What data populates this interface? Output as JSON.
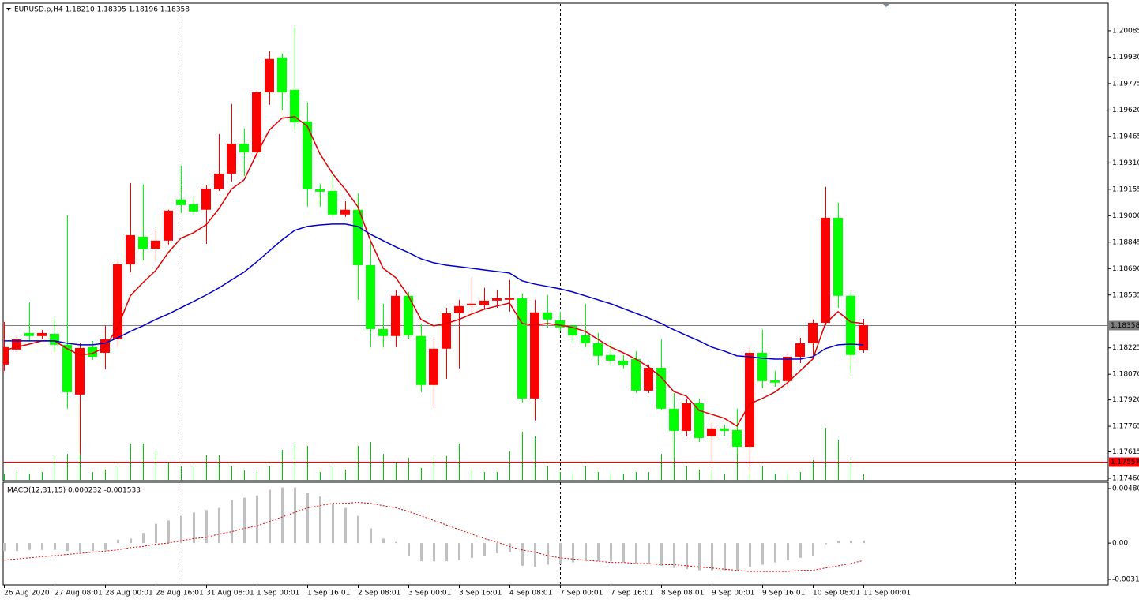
{
  "chart_data": [
    {
      "type": "candlestick",
      "title": "EURUSD.p,H4  1.18210 1.18395 1.18196 1.18358",
      "categories": [
        "26 Aug 2020",
        null,
        null,
        null,
        "27 Aug 08:01",
        null,
        null,
        null,
        "28 Aug 00:01",
        null,
        null,
        null,
        "28 Aug 16:01",
        null,
        null,
        null,
        "31 Aug 08:01",
        null,
        null,
        null,
        "1 Sep 00:01",
        null,
        null,
        null,
        "1 Sep 16:01",
        null,
        null,
        null,
        "2 Sep 08:01",
        null,
        null,
        null,
        "3 Sep 00:01",
        null,
        null,
        null,
        "3 Sep 16:01",
        null,
        null,
        null,
        "4 Sep 08:01",
        null,
        null,
        null,
        "7 Sep 00:01",
        null,
        null,
        null,
        "7 Sep 16:01",
        null,
        null,
        null,
        "8 Sep 08:01",
        null,
        null,
        null,
        "9 Sep 00:01",
        null,
        null,
        null,
        "9 Sep 16:01",
        null,
        null,
        null,
        "10 Sep 08:01",
        null,
        null,
        null,
        "11 Sep 00:01"
      ],
      "open": [
        1.18127,
        1.18215,
        1.18312,
        1.18294,
        1.18307,
        1.18243,
        1.17951,
        1.18229,
        1.18196,
        1.18275,
        1.18715,
        1.18877,
        1.18807,
        1.18854,
        1.19095,
        1.19067,
        1.19035,
        1.19155,
        1.19247,
        1.19423,
        1.19372,
        1.19724,
        1.19928,
        1.19738,
        1.19553,
        1.19155,
        1.19145,
        1.19007,
        1.19035,
        1.1871,
        1.18335,
        1.18294,
        1.1853,
        1.18294,
        1.18007,
        1.1822,
        1.18428,
        1.18475,
        1.18475,
        1.18502,
        1.18507,
        1.18516,
        1.17928,
        1.18433,
        1.18386,
        1.18354,
        1.18298,
        1.18252,
        1.18183,
        1.1815,
        1.18159,
        1.17974,
        1.18108,
        1.17868,
        1.17738,
        1.179,
        1.17706,
        1.17752,
        1.17743,
        1.17645,
        1.18196,
        1.18035,
        1.1803,
        1.18173,
        1.18252,
        1.18372,
        1.18988,
        1.1853,
        1.1821
      ],
      "high": [
        1.18377,
        1.18298,
        1.18493,
        1.18331,
        1.18395,
        1.19002,
        1.18252,
        1.18266,
        1.18354,
        1.18738,
        1.19192,
        1.19183,
        1.18923,
        1.19035,
        1.19294,
        1.19108,
        1.19178,
        1.19479,
        1.19655,
        1.19511,
        1.19733,
        1.19965,
        1.19951,
        1.20109,
        1.19664,
        1.19187,
        1.19247,
        1.19085,
        1.19131,
        1.18845,
        1.18483,
        1.18562,
        1.18553,
        1.18368,
        1.18275,
        1.1846,
        1.18507,
        1.18637,
        1.18577,
        1.18562,
        1.18623,
        1.18544,
        1.18507,
        1.18535,
        1.18437,
        1.18368,
        1.18484,
        1.18312,
        1.18252,
        1.18183,
        1.18206,
        1.18127,
        1.18275,
        1.1796,
        1.17928,
        1.17928,
        1.17789,
        1.17775,
        1.17868,
        1.18229,
        1.18331,
        1.1809,
        1.18192,
        1.18284,
        1.18391,
        1.19169,
        1.19076,
        1.18553,
        1.18395
      ],
      "low": [
        1.1809,
        1.18196,
        1.18266,
        1.18275,
        1.18201,
        1.17868,
        1.17604,
        1.18155,
        1.18099,
        1.18229,
        1.18669,
        1.18738,
        1.18729,
        1.18831,
        1.19016,
        1.19007,
        1.18835,
        1.19145,
        1.19201,
        1.19233,
        1.1934,
        1.1965,
        1.19618,
        1.19502,
        1.19053,
        1.19053,
        1.18993,
        1.18993,
        1.18507,
        1.18229,
        1.18229,
        1.18229,
        1.18275,
        1.17965,
        1.17882,
        1.18044,
        1.18104,
        1.18437,
        1.18451,
        1.1846,
        1.18437,
        1.17905,
        1.17799,
        1.1834,
        1.18321,
        1.18257,
        1.18229,
        1.18122,
        1.18122,
        1.18104,
        1.1796,
        1.1796,
        1.17858,
        1.17581,
        1.17706,
        1.17673,
        1.17558,
        1.1771,
        1.17604,
        1.17498,
        1.17988,
        1.17997,
        1.17997,
        1.18136,
        1.18159,
        1.18358,
        1.1846,
        1.18076,
        1.18196
      ],
      "close": [
        1.18229,
        1.18275,
        1.18294,
        1.18312,
        1.18243,
        1.17965,
        1.18224,
        1.18173,
        1.18275,
        1.18715,
        1.18886,
        1.18803,
        1.18854,
        1.1903,
        1.19062,
        1.19025,
        1.19159,
        1.19247,
        1.19423,
        1.19372,
        1.19724,
        1.19919,
        1.19724,
        1.19548,
        1.19155,
        1.19141,
        1.19007,
        1.19035,
        1.1871,
        1.18335,
        1.18294,
        1.1853,
        1.18298,
        1.18007,
        1.1822,
        1.18428,
        1.1847,
        1.18484,
        1.18502,
        1.18516,
        1.18516,
        1.17928,
        1.18433,
        1.18391,
        1.18345,
        1.18298,
        1.18252,
        1.18178,
        1.1815,
        1.18122,
        1.17974,
        1.18108,
        1.17868,
        1.17738,
        1.179,
        1.17696,
        1.17752,
        1.17738,
        1.17645,
        1.18196,
        1.1803,
        1.18021,
        1.18173,
        1.18252,
        1.18372,
        1.18988,
        1.1853,
        1.18183,
        1.18358
      ],
      "up_color": "#ff0000",
      "down_color": "#00ff00",
      "lines": [
        {
          "color": "#dd0000",
          "values": [
            1.1821,
            1.18229,
            1.18247,
            1.18266,
            1.18266,
            1.1822,
            1.18183,
            1.18192,
            1.18229,
            1.18345,
            1.1853,
            1.18608,
            1.18678,
            1.18784,
            1.18868,
            1.189,
            1.18947,
            1.1904,
            1.19155,
            1.1921,
            1.19363,
            1.19502,
            1.19572,
            1.19581,
            1.19525,
            1.19363,
            1.19247,
            1.19155,
            1.19053,
            1.18854,
            1.18692,
            1.18637,
            1.1853,
            1.18391,
            1.18354,
            1.18368,
            1.18391,
            1.18423,
            1.18451,
            1.1847,
            1.18488,
            1.18368,
            1.18358,
            1.18368,
            1.18358,
            1.18345,
            1.18321,
            1.18275,
            1.18229,
            1.18196,
            1.18159,
            1.18113,
            1.18053,
            1.17969,
            1.17942,
            1.17858,
            1.17835,
            1.17812,
            1.17766,
            1.17896,
            1.17928,
            1.17965,
            1.18021,
            1.1809,
            1.18159,
            1.18368,
            1.18437,
            1.18377,
            1.18368
          ]
        },
        {
          "color": "#0000c8",
          "values": [
            1.18266,
            1.18266,
            1.18266,
            1.18266,
            1.18266,
            1.18252,
            1.18243,
            1.18243,
            1.18252,
            1.18284,
            1.18321,
            1.18354,
            1.18391,
            1.18423,
            1.1846,
            1.18497,
            1.18535,
            1.18576,
            1.18623,
            1.18669,
            1.18729,
            1.18794,
            1.18858,
            1.18914,
            1.18937,
            1.18946,
            1.18951,
            1.18951,
            1.18937,
            1.18891,
            1.18854,
            1.18817,
            1.18784,
            1.18747,
            1.18724,
            1.1871,
            1.18701,
            1.18692,
            1.18682,
            1.18673,
            1.18664,
            1.18618,
            1.18599,
            1.18585,
            1.18571,
            1.18553,
            1.1853,
            1.18507,
            1.18484,
            1.18456,
            1.18428,
            1.184,
            1.18368,
            1.18331,
            1.18298,
            1.18266,
            1.18229,
            1.18206,
            1.18178,
            1.18173,
            1.18164,
            1.18159,
            1.18159,
            1.18159,
            1.18173,
            1.1822,
            1.18243,
            1.18247,
            1.18243
          ]
        }
      ],
      "volumes": {
        "color": "#00c800",
        "values": [
          9,
          11,
          9,
          11,
          31,
          34,
          44,
          11,
          14,
          19,
          47,
          47,
          37,
          24,
          19,
          19,
          32,
          32,
          19,
          13,
          11,
          19,
          39,
          47,
          44,
          11,
          19,
          14,
          44,
          49,
          34,
          24,
          29,
          16,
          29,
          31,
          47,
          14,
          11,
          11,
          37,
          62,
          56,
          19,
          11,
          9,
          19,
          11,
          9,
          9,
          11,
          11,
          34,
          34,
          19,
          14,
          12,
          9,
          34,
          49,
          19,
          9,
          9,
          11,
          26,
          67,
          52,
          27,
          8
        ]
      },
      "price_lines": [
        {
          "value": 1.18358,
          "color": "#7f7f7f"
        },
        {
          "value": 1.17557,
          "color": "#ff0000"
        }
      ],
      "ylim": [
        1.17446,
        1.20242
      ],
      "yticks": [
        1.20085,
        {
          "value": 1.1993,
          "label": "1.19930"
        },
        1.19775,
        {
          "value": 1.1962,
          "label": "1.19620"
        },
        1.19465,
        {
          "value": 1.1931,
          "label": "1.19310"
        },
        1.19155,
        {
          "value": 1.19,
          "label": "1.19000"
        },
        1.18845,
        {
          "value": 1.1869,
          "label": "1.18690"
        },
        1.18535,
        1.18225,
        {
          "value": 1.1807,
          "label": "1.18070"
        },
        {
          "value": 1.1792,
          "label": "1.17920"
        },
        1.17765,
        1.17615,
        {
          "value": 1.1746,
          "label": "1.17460"
        }
      ]
    },
    {
      "type": "macd",
      "title": "MACD(12,31,15) 0.000232 -0.001533",
      "color": "#c0c0c0",
      "values": [
        -0.0007,
        -0.0007,
        -0.0006,
        -0.0006,
        -0.0006,
        -0.0007,
        -0.0008,
        -0.0007,
        -0.0006,
        0.0003,
        0.0004,
        0.0009,
        0.0017,
        0.002,
        0.0024,
        0.0027,
        0.0029,
        0.0031,
        0.0038,
        0.004,
        0.0042,
        0.0047,
        0.0049,
        0.0049,
        0.0044,
        0.0041,
        0.0035,
        0.0031,
        0.0024,
        0.0013,
        0.0004,
        0.0001,
        -0.0011,
        -0.0016,
        -0.0016,
        -0.0016,
        -0.0015,
        -0.0013,
        -0.0011,
        -0.0009,
        -0.0008,
        -0.002,
        -0.0021,
        -0.0019,
        -0.0018,
        -0.0017,
        -0.0016,
        -0.0016,
        -0.0016,
        -0.0017,
        -0.0018,
        -0.0018,
        -0.002,
        -0.0022,
        -0.0023,
        -0.0024,
        -0.0024,
        -0.0024,
        -0.0025,
        -0.0021,
        -0.0019,
        -0.0017,
        -0.0015,
        -0.0013,
        -0.0011,
        -0.0001,
        0.0002,
        0.0002,
        0.000232
      ],
      "signal": {
        "color": "#e00000",
        "values": [
          -0.0015,
          -0.0014,
          -0.0013,
          -0.0012,
          -0.0011,
          -0.001,
          -0.0009,
          -0.0008,
          -0.0007,
          -0.0006,
          -0.0004,
          -0.0003,
          -0.0001,
          0,
          0.0002,
          0.0004,
          0.0005,
          0.0008,
          0.001,
          0.0013,
          0.0015,
          0.0019,
          0.0023,
          0.0027,
          0.0031,
          0.0033,
          0.0035,
          0.0035,
          0.0036,
          0.0035,
          0.0033,
          0.0031,
          0.0028,
          0.0024,
          0.002,
          0.0016,
          0.0012,
          0.0008,
          0.0004,
          0.0001,
          -0.0003,
          -0.0006,
          -0.0008,
          -0.0011,
          -0.0013,
          -0.0014,
          -0.0015,
          -0.0016,
          -0.0017,
          -0.0017,
          -0.0018,
          -0.0018,
          -0.0019,
          -0.0019,
          -0.002,
          -0.0021,
          -0.0022,
          -0.0023,
          -0.0024,
          -0.0025,
          -0.0025,
          -0.0025,
          -0.0025,
          -0.0024,
          -0.0024,
          -0.0022,
          -0.002,
          -0.0018,
          -0.001533
        ]
      },
      "ylim": [
        -0.003677,
        0.005294
      ],
      "yticks": [
        0.004807,
        {
          "value": 0,
          "label": "0.00"
        },
        -0.00319
      ]
    }
  ]
}
